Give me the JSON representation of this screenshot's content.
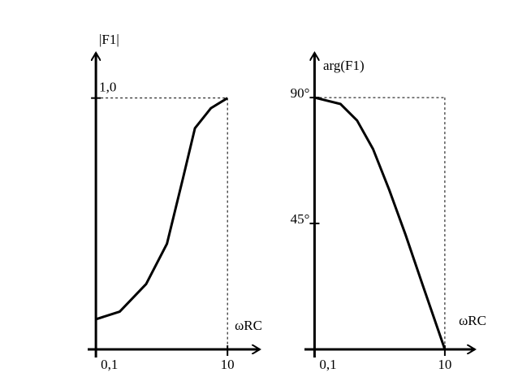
{
  "chart_data": [
    {
      "type": "line",
      "y_label": "|F1|",
      "x_label": "ωRC",
      "log_x": true,
      "color": "#000000",
      "x": [
        0.1,
        0.23,
        0.58,
        1.2,
        2.1,
        3.2,
        5.6,
        10
      ],
      "values": [
        0.12,
        0.15,
        0.26,
        0.42,
        0.68,
        0.88,
        0.96,
        1.0
      ],
      "xlim": [
        0.075,
        31
      ],
      "ylim": [
        0,
        1.18
      ],
      "xticks": [
        {
          "value": 0.1,
          "label": "0,1"
        },
        {
          "value": 10,
          "label": "10"
        }
      ],
      "yticks": [
        {
          "value": 1,
          "label": "1,0"
        }
      ]
    },
    {
      "type": "line",
      "y_label": "arg(F1)",
      "x_label": "ωRC",
      "log_x": true,
      "color": "#000000",
      "x": [
        0.1,
        0.25,
        0.45,
        0.79,
        1.4,
        2.5,
        4.5,
        10
      ],
      "values": [
        90,
        87.7,
        81.8,
        71.6,
        57,
        40.9,
        23.4,
        0
      ],
      "xlim": [
        0.07,
        29
      ],
      "ylim": [
        0,
        106
      ],
      "xticks": [
        {
          "value": 0.1,
          "label": "0,1"
        },
        {
          "value": 10,
          "label": "10"
        }
      ],
      "yticks": [
        {
          "value": 45,
          "label": "45°"
        },
        {
          "value": 90,
          "label": "90°"
        }
      ]
    }
  ]
}
